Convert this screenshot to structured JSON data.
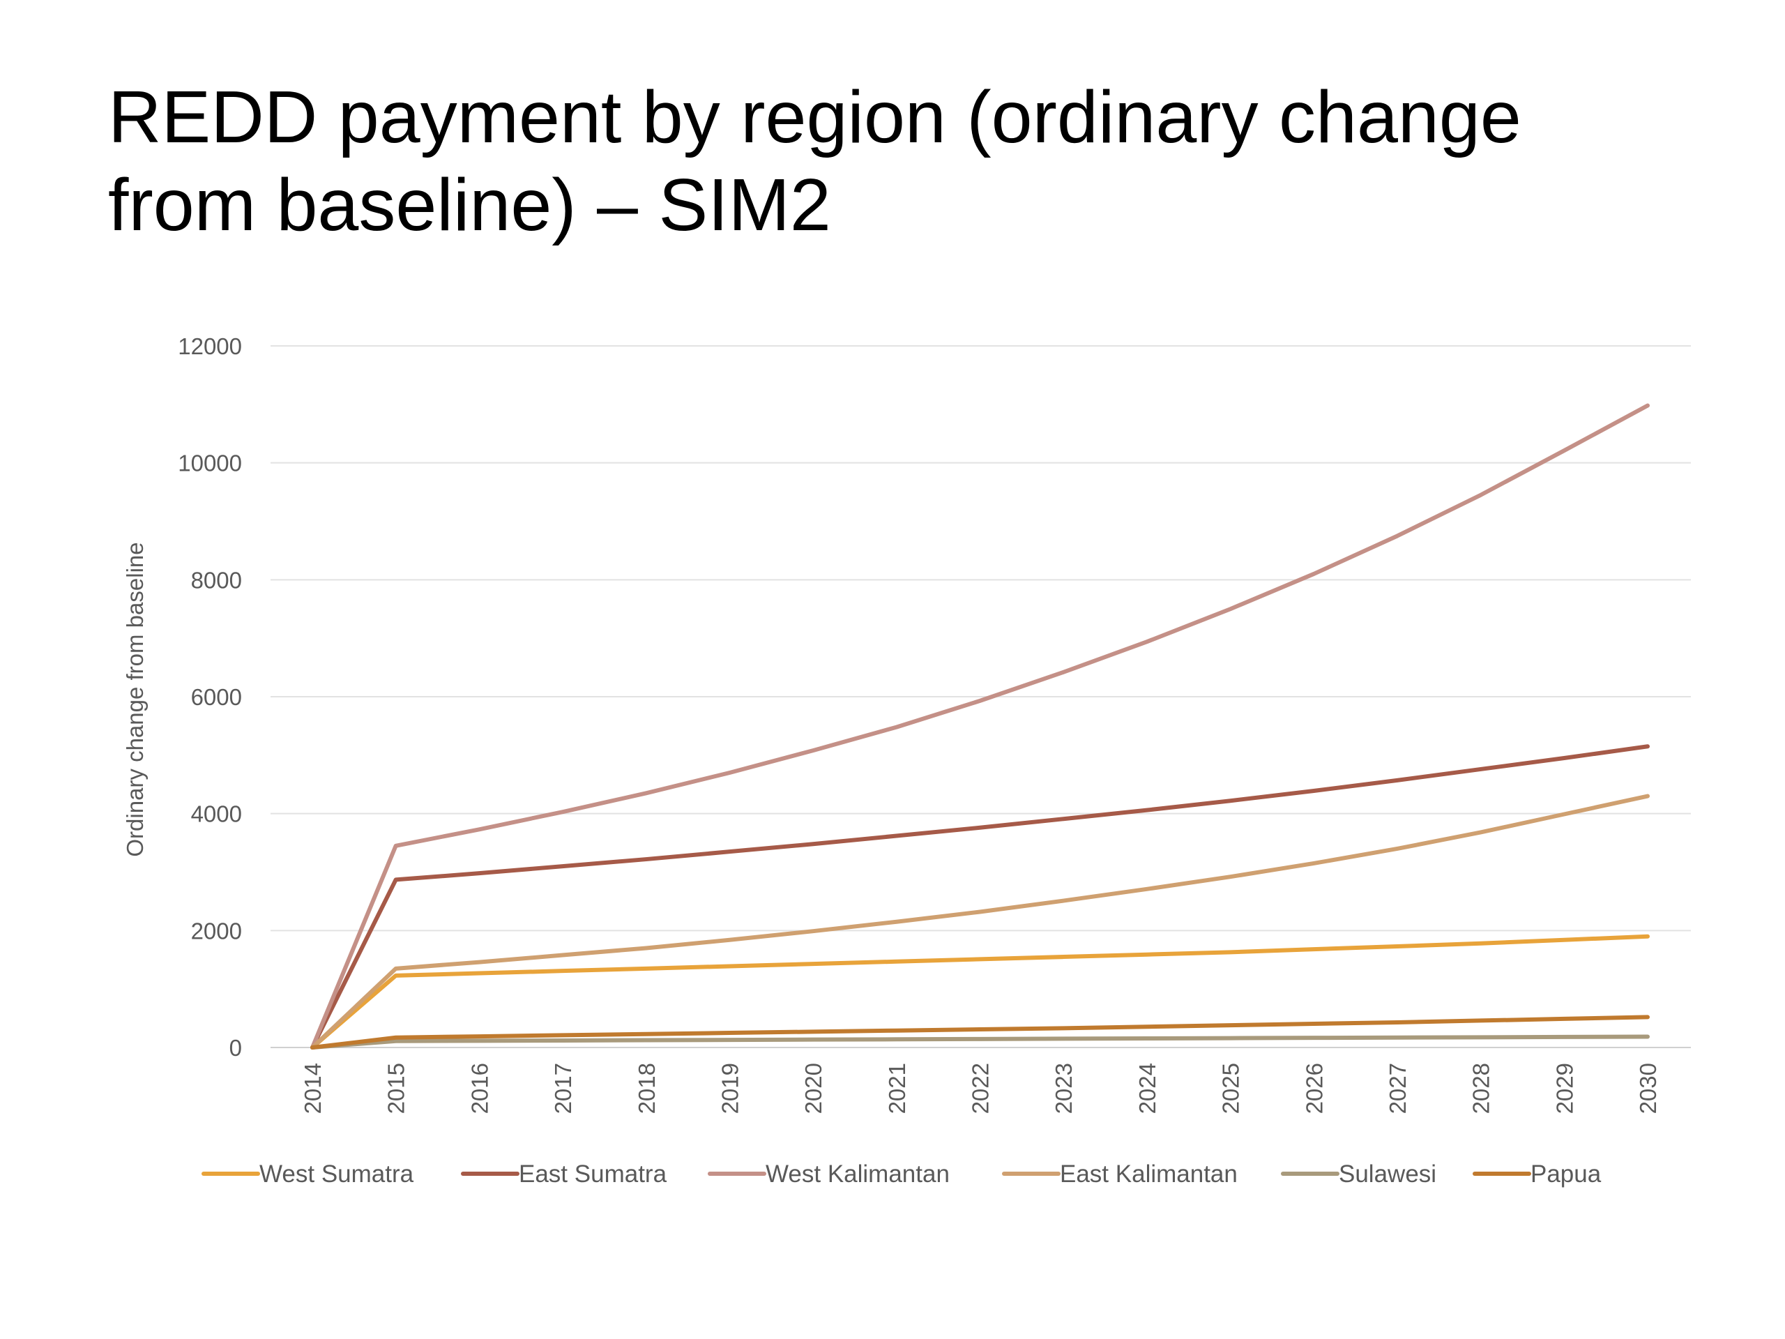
{
  "slide": {
    "title_line1": "REDD payment by region (ordinary change",
    "title_line2": "from baseline) – SIM2"
  },
  "chart_data": {
    "type": "line",
    "title": "",
    "xlabel": "",
    "ylabel": "Ordinary change from baseline",
    "ylim": [
      0,
      12000
    ],
    "yticks": [
      0,
      2000,
      4000,
      6000,
      8000,
      10000,
      12000
    ],
    "grid": true,
    "legend_position": "bottom",
    "x": [
      "2014",
      "2015",
      "2016",
      "2017",
      "2018",
      "2019",
      "2020",
      "2021",
      "2022",
      "2023",
      "2024",
      "2025",
      "2026",
      "2027",
      "2028",
      "2029",
      "2030"
    ],
    "series": [
      {
        "name": "West Sumatra",
        "color": "#E8A33A",
        "values": [
          0,
          1230,
          1270,
          1310,
          1350,
          1390,
          1430,
          1470,
          1510,
          1550,
          1590,
          1630,
          1680,
          1730,
          1780,
          1840,
          1900
        ]
      },
      {
        "name": "East Sumatra",
        "color": "#A65A48",
        "values": [
          0,
          2870,
          2980,
          3100,
          3220,
          3350,
          3480,
          3620,
          3760,
          3910,
          4060,
          4220,
          4390,
          4570,
          4760,
          4950,
          5150
        ]
      },
      {
        "name": "West Kalimantan",
        "color": "#C49087",
        "values": [
          0,
          3450,
          3730,
          4030,
          4350,
          4700,
          5080,
          5480,
          5930,
          6420,
          6940,
          7500,
          8100,
          8750,
          9450,
          10210,
          10980
        ]
      },
      {
        "name": "East Kalimantan",
        "color": "#CFA070",
        "values": [
          0,
          1350,
          1460,
          1580,
          1700,
          1840,
          1990,
          2150,
          2320,
          2510,
          2710,
          2920,
          3150,
          3400,
          3680,
          3990,
          4300
        ]
      },
      {
        "name": "Sulawesi",
        "color": "#A89A7C",
        "values": [
          0,
          110,
          115,
          120,
          125,
          130,
          135,
          140,
          145,
          150,
          155,
          160,
          165,
          170,
          175,
          180,
          185
        ]
      },
      {
        "name": "Papua",
        "color": "#C07A2E",
        "values": [
          0,
          170,
          190,
          210,
          230,
          250,
          270,
          290,
          310,
          330,
          355,
          380,
          405,
          430,
          460,
          490,
          520
        ]
      }
    ]
  }
}
